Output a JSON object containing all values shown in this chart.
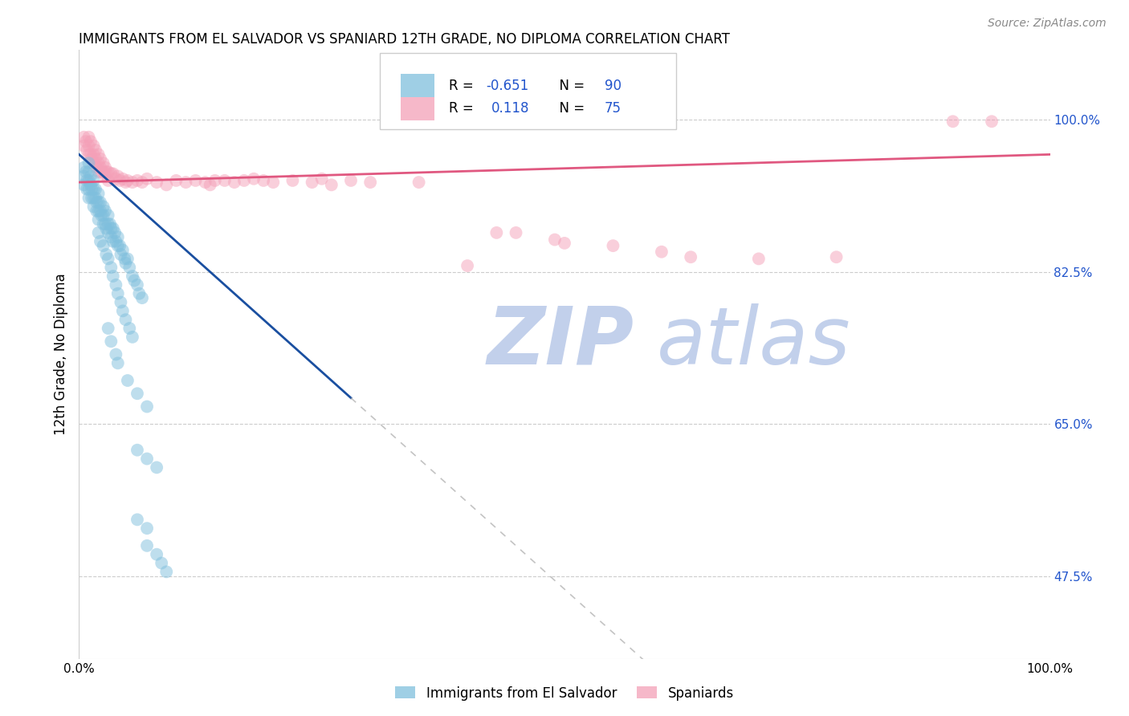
{
  "title": "IMMIGRANTS FROM EL SALVADOR VS SPANIARD 12TH GRADE, NO DIPLOMA CORRELATION CHART",
  "source": "Source: ZipAtlas.com",
  "ylabel": "12th Grade, No Diploma",
  "legend_label1": "Immigrants from El Salvador",
  "legend_label2": "Spaniards",
  "R_blue": -0.651,
  "N_blue": 90,
  "R_pink": 0.118,
  "N_pink": 75,
  "ytick_labels": [
    "100.0%",
    "82.5%",
    "65.0%",
    "47.5%"
  ],
  "ytick_values": [
    1.0,
    0.825,
    0.65,
    0.475
  ],
  "xlim": [
    0.0,
    1.0
  ],
  "ylim": [
    0.38,
    1.08
  ],
  "blue_color": "#7fbfdd",
  "pink_color": "#f4a0b8",
  "blue_line_color": "#1a4fa0",
  "pink_line_color": "#e05880",
  "grid_color": "#cccccc",
  "watermark_text1": "ZIP",
  "watermark_text2": "atlas",
  "blue_scatter": [
    [
      0.005,
      0.945
    ],
    [
      0.005,
      0.935
    ],
    [
      0.005,
      0.925
    ],
    [
      0.007,
      0.94
    ],
    [
      0.008,
      0.93
    ],
    [
      0.008,
      0.92
    ],
    [
      0.01,
      0.95
    ],
    [
      0.01,
      0.94
    ],
    [
      0.01,
      0.93
    ],
    [
      0.01,
      0.92
    ],
    [
      0.01,
      0.91
    ],
    [
      0.012,
      0.935
    ],
    [
      0.012,
      0.925
    ],
    [
      0.013,
      0.92
    ],
    [
      0.013,
      0.91
    ],
    [
      0.015,
      0.93
    ],
    [
      0.015,
      0.92
    ],
    [
      0.015,
      0.91
    ],
    [
      0.015,
      0.9
    ],
    [
      0.017,
      0.92
    ],
    [
      0.017,
      0.91
    ],
    [
      0.018,
      0.905
    ],
    [
      0.018,
      0.895
    ],
    [
      0.02,
      0.915
    ],
    [
      0.02,
      0.905
    ],
    [
      0.02,
      0.895
    ],
    [
      0.02,
      0.885
    ],
    [
      0.022,
      0.905
    ],
    [
      0.022,
      0.895
    ],
    [
      0.023,
      0.89
    ],
    [
      0.025,
      0.9
    ],
    [
      0.025,
      0.89
    ],
    [
      0.025,
      0.88
    ],
    [
      0.027,
      0.895
    ],
    [
      0.027,
      0.88
    ],
    [
      0.028,
      0.875
    ],
    [
      0.03,
      0.89
    ],
    [
      0.03,
      0.88
    ],
    [
      0.03,
      0.87
    ],
    [
      0.032,
      0.88
    ],
    [
      0.033,
      0.875
    ],
    [
      0.033,
      0.865
    ],
    [
      0.035,
      0.875
    ],
    [
      0.035,
      0.86
    ],
    [
      0.037,
      0.87
    ],
    [
      0.038,
      0.86
    ],
    [
      0.04,
      0.865
    ],
    [
      0.04,
      0.855
    ],
    [
      0.042,
      0.855
    ],
    [
      0.043,
      0.845
    ],
    [
      0.045,
      0.85
    ],
    [
      0.047,
      0.84
    ],
    [
      0.048,
      0.835
    ],
    [
      0.05,
      0.84
    ],
    [
      0.052,
      0.83
    ],
    [
      0.055,
      0.82
    ],
    [
      0.057,
      0.815
    ],
    [
      0.06,
      0.81
    ],
    [
      0.062,
      0.8
    ],
    [
      0.065,
      0.795
    ],
    [
      0.02,
      0.87
    ],
    [
      0.022,
      0.86
    ],
    [
      0.025,
      0.855
    ],
    [
      0.028,
      0.845
    ],
    [
      0.03,
      0.84
    ],
    [
      0.033,
      0.83
    ],
    [
      0.035,
      0.82
    ],
    [
      0.038,
      0.81
    ],
    [
      0.04,
      0.8
    ],
    [
      0.043,
      0.79
    ],
    [
      0.045,
      0.78
    ],
    [
      0.048,
      0.77
    ],
    [
      0.052,
      0.76
    ],
    [
      0.055,
      0.75
    ],
    [
      0.03,
      0.76
    ],
    [
      0.033,
      0.745
    ],
    [
      0.038,
      0.73
    ],
    [
      0.04,
      0.72
    ],
    [
      0.05,
      0.7
    ],
    [
      0.06,
      0.685
    ],
    [
      0.07,
      0.67
    ],
    [
      0.06,
      0.62
    ],
    [
      0.07,
      0.61
    ],
    [
      0.08,
      0.6
    ],
    [
      0.06,
      0.54
    ],
    [
      0.07,
      0.53
    ],
    [
      0.07,
      0.51
    ],
    [
      0.08,
      0.5
    ],
    [
      0.085,
      0.49
    ],
    [
      0.09,
      0.48
    ]
  ],
  "pink_scatter": [
    [
      0.005,
      0.98
    ],
    [
      0.005,
      0.97
    ],
    [
      0.007,
      0.975
    ],
    [
      0.008,
      0.965
    ],
    [
      0.01,
      0.98
    ],
    [
      0.01,
      0.97
    ],
    [
      0.01,
      0.96
    ],
    [
      0.012,
      0.975
    ],
    [
      0.012,
      0.96
    ],
    [
      0.013,
      0.955
    ],
    [
      0.015,
      0.97
    ],
    [
      0.015,
      0.96
    ],
    [
      0.015,
      0.95
    ],
    [
      0.017,
      0.965
    ],
    [
      0.017,
      0.955
    ],
    [
      0.018,
      0.945
    ],
    [
      0.02,
      0.96
    ],
    [
      0.02,
      0.95
    ],
    [
      0.02,
      0.94
    ],
    [
      0.022,
      0.955
    ],
    [
      0.022,
      0.945
    ],
    [
      0.023,
      0.94
    ],
    [
      0.025,
      0.95
    ],
    [
      0.025,
      0.94
    ],
    [
      0.027,
      0.945
    ],
    [
      0.027,
      0.935
    ],
    [
      0.028,
      0.94
    ],
    [
      0.03,
      0.94
    ],
    [
      0.03,
      0.93
    ],
    [
      0.033,
      0.938
    ],
    [
      0.035,
      0.938
    ],
    [
      0.038,
      0.932
    ],
    [
      0.04,
      0.935
    ],
    [
      0.042,
      0.93
    ],
    [
      0.045,
      0.932
    ],
    [
      0.048,
      0.928
    ],
    [
      0.05,
      0.93
    ],
    [
      0.055,
      0.928
    ],
    [
      0.06,
      0.93
    ],
    [
      0.065,
      0.928
    ],
    [
      0.07,
      0.932
    ],
    [
      0.08,
      0.928
    ],
    [
      0.09,
      0.925
    ],
    [
      0.1,
      0.93
    ],
    [
      0.11,
      0.928
    ],
    [
      0.12,
      0.93
    ],
    [
      0.13,
      0.928
    ],
    [
      0.135,
      0.925
    ],
    [
      0.14,
      0.93
    ],
    [
      0.15,
      0.93
    ],
    [
      0.16,
      0.928
    ],
    [
      0.17,
      0.93
    ],
    [
      0.18,
      0.932
    ],
    [
      0.19,
      0.93
    ],
    [
      0.2,
      0.928
    ],
    [
      0.22,
      0.93
    ],
    [
      0.24,
      0.928
    ],
    [
      0.25,
      0.932
    ],
    [
      0.26,
      0.925
    ],
    [
      0.28,
      0.93
    ],
    [
      0.3,
      0.928
    ],
    [
      0.35,
      0.928
    ],
    [
      0.4,
      0.832
    ],
    [
      0.43,
      0.87
    ],
    [
      0.45,
      0.87
    ],
    [
      0.49,
      0.862
    ],
    [
      0.5,
      0.858
    ],
    [
      0.55,
      0.855
    ],
    [
      0.6,
      0.848
    ],
    [
      0.63,
      0.842
    ],
    [
      0.7,
      0.84
    ],
    [
      0.78,
      0.842
    ],
    [
      0.9,
      0.998
    ],
    [
      0.94,
      0.998
    ]
  ],
  "blue_line": [
    [
      0.0,
      0.96
    ],
    [
      0.28,
      0.68
    ]
  ],
  "blue_line_dashed": [
    [
      0.28,
      0.68
    ],
    [
      0.62,
      0.34
    ]
  ],
  "pink_line": [
    [
      0.0,
      0.928
    ],
    [
      1.0,
      0.96
    ]
  ]
}
